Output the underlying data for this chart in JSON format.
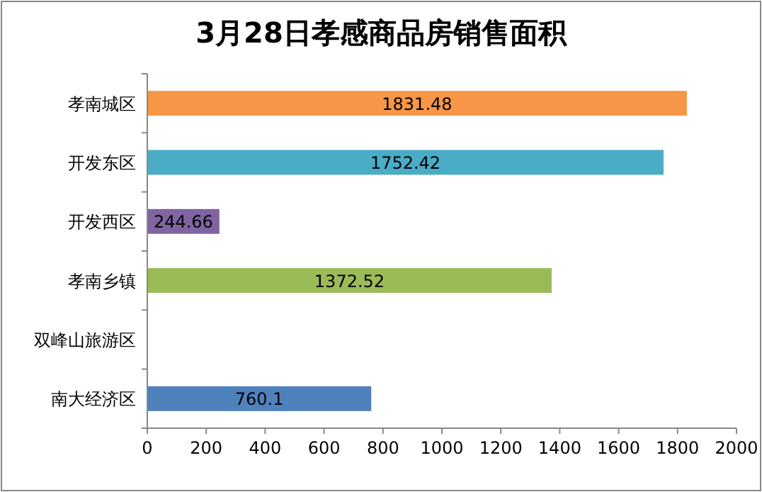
{
  "chart_data": {
    "type": "bar",
    "orientation": "horizontal",
    "title": "3月28日孝感商品房销售面积",
    "categories": [
      "孝南城区",
      "开发东区",
      "开发西区",
      "孝南乡镇",
      "双峰山旅游区",
      "南大经济区"
    ],
    "values": [
      1831.48,
      1752.42,
      244.66,
      1372.52,
      null,
      760.1
    ],
    "colors": [
      "#f79646",
      "#4bacc6",
      "#8064a2",
      "#9bbb59",
      null,
      "#4f81bd"
    ],
    "xlim": [
      0,
      2000
    ],
    "xticks": [
      0,
      200,
      400,
      600,
      800,
      1000,
      1200,
      1400,
      1600,
      1800,
      2000
    ],
    "data_labels": true,
    "grid": false
  }
}
